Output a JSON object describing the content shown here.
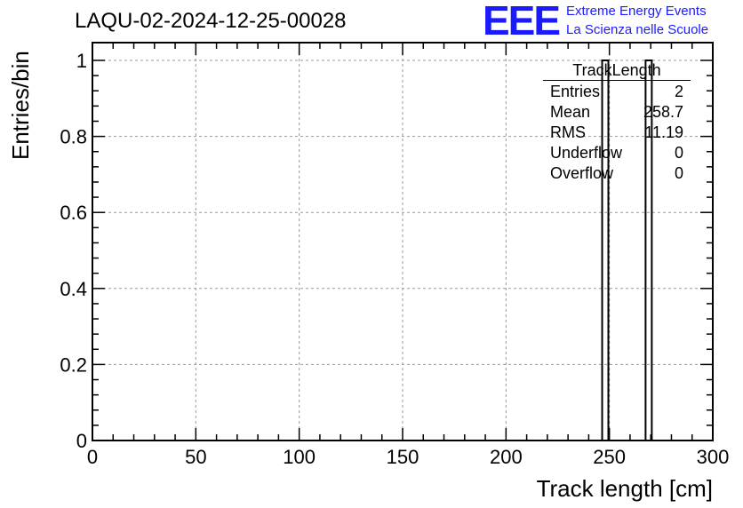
{
  "title": "LAQU-02-2024-12-25-00028",
  "logo": {
    "text": "EEE",
    "line1": "Extreme Energy Events",
    "line2": "La Scienza nelle Scuole",
    "color": "#1a1aff"
  },
  "stats": {
    "title": "TrackLength",
    "rows": [
      {
        "label": "Entries",
        "value": "2"
      },
      {
        "label": "Mean",
        "value": "258.7"
      },
      {
        "label": "RMS",
        "value": "11.19"
      },
      {
        "label": "Underflow",
        "value": "0"
      },
      {
        "label": "Overflow",
        "value": "0"
      }
    ]
  },
  "chart_data": {
    "type": "bar",
    "title": "LAQU-02-2024-12-25-00028",
    "xlabel": "Track length [cm]",
    "ylabel": "Entries/bin",
    "xlim": [
      0,
      300
    ],
    "ylim": [
      0,
      1
    ],
    "xticks": [
      0,
      50,
      100,
      150,
      200,
      250,
      300
    ],
    "yticks": [
      0,
      0.2,
      0.4,
      0.6,
      0.8,
      1
    ],
    "xtick_labels": [
      "0",
      "50",
      "100",
      "150",
      "200",
      "250",
      "300"
    ],
    "ytick_labels": [
      "0",
      "0.2",
      "0.4",
      "0.6",
      "0.8",
      "1"
    ],
    "bins": [
      {
        "x0": 246.5,
        "x1": 249.5,
        "value": 1
      },
      {
        "x0": 267.5,
        "x1": 270.5,
        "value": 1
      }
    ],
    "grid": true
  }
}
